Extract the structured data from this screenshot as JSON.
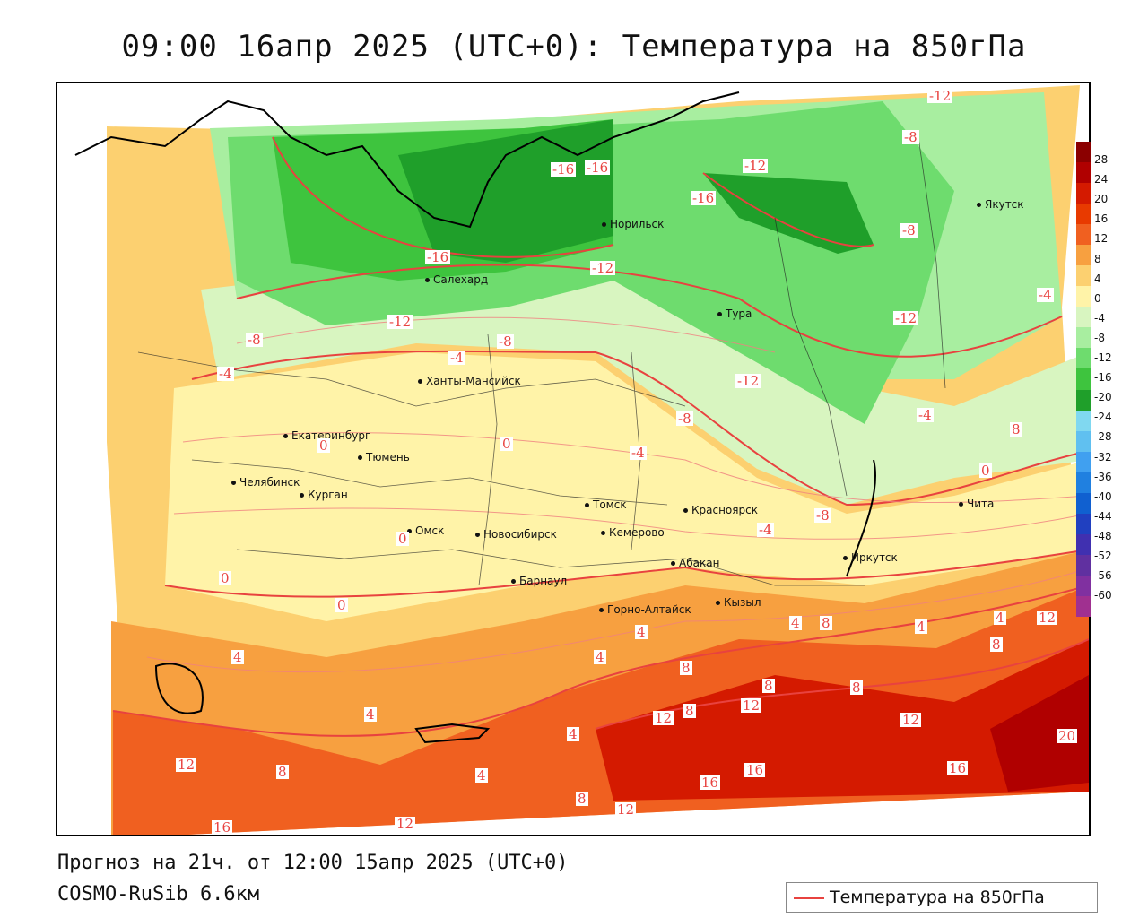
{
  "title": "09:00 16апр 2025 (UTC+0): Температура на 850гПа",
  "footer": {
    "forecast": "Прогноз на 21ч. от 12:00 15апр 2025 (UTC+0)",
    "model": "COSMO-RuSib 6.6км"
  },
  "legend": {
    "label": "Температура на 850гПа",
    "line_color": "#e8423f"
  },
  "colorbar": {
    "labels": [
      "28",
      "24",
      "20",
      "16",
      "12",
      "8",
      "4",
      "0",
      "-4",
      "-8",
      "-12",
      "-16",
      "-20",
      "-24",
      "-28",
      "-32",
      "-36",
      "-40",
      "-44",
      "-48",
      "-52",
      "-56",
      "-60"
    ],
    "colors": [
      "#8b0000",
      "#b00000",
      "#d41a00",
      "#e83a00",
      "#f06020",
      "#f7a040",
      "#fcd070",
      "#fff3a8",
      "#d8f5c0",
      "#a8eea0",
      "#6edc6e",
      "#3ec43e",
      "#1f9f2a",
      "#80d8f0",
      "#60c0f0",
      "#40a0f0",
      "#2080e0",
      "#1060d0",
      "#2040c0",
      "#4030b0",
      "#6030a0",
      "#8030a0",
      "#a03090"
    ]
  },
  "cities": [
    {
      "name": "Якутск"
    },
    {
      "name": "Норильск"
    },
    {
      "name": "Салехард"
    },
    {
      "name": "Тура"
    },
    {
      "name": "Ханты-Мансийск"
    },
    {
      "name": "Екатеринбург"
    },
    {
      "name": "Тюмень"
    },
    {
      "name": "Челябинск"
    },
    {
      "name": "Курган"
    },
    {
      "name": "Омск"
    },
    {
      "name": "Новосибирск"
    },
    {
      "name": "Томск"
    },
    {
      "name": "Кемерово"
    },
    {
      "name": "Красноярск"
    },
    {
      "name": "Абакан"
    },
    {
      "name": "Барнаул"
    },
    {
      "name": "Горно-Алтайск"
    },
    {
      "name": "Кызыл"
    },
    {
      "name": "Иркутск"
    },
    {
      "name": "Чита"
    }
  ],
  "contour_labels": [
    "-12",
    "-8",
    "-16",
    "-16",
    "-12",
    "-16",
    "-8",
    "-16",
    "-12",
    "-12",
    "-4",
    "-12",
    "-8",
    "-12",
    "-8",
    "-4",
    "-4",
    "-8",
    "-4",
    "-4",
    "-8",
    "-4",
    "0",
    "0",
    "0",
    "0",
    "0",
    "0",
    "4",
    "4",
    "4",
    "4",
    "4",
    "4",
    "4",
    "4",
    "4",
    "8",
    "8",
    "8",
    "8",
    "8",
    "8",
    "8",
    "8",
    "12",
    "12",
    "12",
    "12",
    "12",
    "12",
    "12",
    "16",
    "16",
    "16",
    "16",
    "20",
    "8"
  ]
}
